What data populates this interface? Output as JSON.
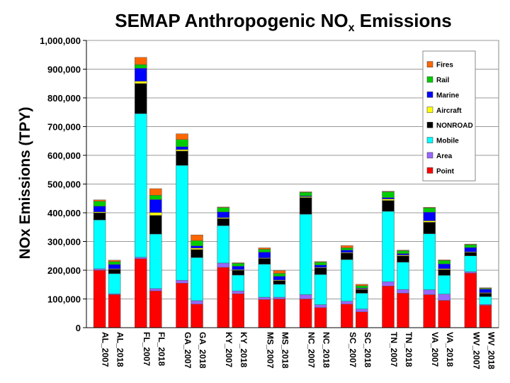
{
  "chart_data": {
    "type": "bar",
    "stacked": true,
    "title_main": "SEMAP Anthropogenic NO",
    "title_sub": "x",
    "title_end": " Emissions",
    "ylabel": "NOx Emissions (TPY)",
    "xlabel": "",
    "ylim": [
      0,
      1000000
    ],
    "yticks": [
      0,
      100000,
      200000,
      300000,
      400000,
      500000,
      600000,
      700000,
      800000,
      900000,
      1000000
    ],
    "ytick_labels": [
      "0",
      "100,000",
      "200,000",
      "300,000",
      "400,000",
      "500,000",
      "600,000",
      "700,000",
      "800,000",
      "900,000",
      "1,000,000"
    ],
    "grid": true,
    "legend_position": "top-right",
    "categories": [
      "AL_2007",
      "AL_2018",
      "FL_2007",
      "FL_2018",
      "GA_2007",
      "GA_2018",
      "KY_2007",
      "KY_2018",
      "MS_2007",
      "MS_2018",
      "NC_2007",
      "NC_2018",
      "SC_2007",
      "SC_2018",
      "TN_2007",
      "TN_2018",
      "VA_2007",
      "VA_2018",
      "WV_2007",
      "WV_2018"
    ],
    "series": [
      {
        "name": "Point",
        "color": "#ff0000",
        "values": [
          200000,
          115000,
          240000,
          128000,
          155000,
          82000,
          210000,
          118000,
          98000,
          100000,
          100000,
          70000,
          82000,
          55000,
          145000,
          120000,
          115000,
          95000,
          190000,
          78000
        ]
      },
      {
        "name": "Area",
        "color": "#9966ff",
        "values": [
          5000,
          3000,
          5000,
          8000,
          10000,
          12000,
          15000,
          10000,
          8000,
          6000,
          15000,
          10000,
          10000,
          10000,
          15000,
          13000,
          17000,
          22000,
          5000,
          3000
        ]
      },
      {
        "name": "Mobile",
        "color": "#00ffff",
        "values": [
          170000,
          70000,
          500000,
          190000,
          400000,
          150000,
          130000,
          55000,
          115000,
          45000,
          280000,
          105000,
          145000,
          55000,
          245000,
          95000,
          195000,
          65000,
          55000,
          27000
        ]
      },
      {
        "name": "NONROAD",
        "color": "#000000",
        "values": [
          25000,
          15000,
          105000,
          65000,
          50000,
          28000,
          25000,
          17000,
          20000,
          13000,
          58000,
          23000,
          23000,
          13000,
          38000,
          22000,
          40000,
          20000,
          12000,
          12000
        ]
      },
      {
        "name": "Aircraft",
        "color": "#ffff00",
        "values": [
          3000,
          2000,
          8000,
          10000,
          5000,
          5000,
          3000,
          2000,
          2000,
          2000,
          3000,
          2000,
          2000,
          2000,
          5000,
          3000,
          5000,
          3000,
          2000,
          2000
        ]
      },
      {
        "name": "Marine",
        "color": "#0000ff",
        "values": [
          20000,
          15000,
          45000,
          45000,
          10000,
          8000,
          20000,
          12000,
          20000,
          13000,
          3000,
          8000,
          8000,
          3000,
          5000,
          5000,
          30000,
          17000,
          15000,
          12000
        ]
      },
      {
        "name": "Rail",
        "color": "#00cc00",
        "values": [
          17000,
          10000,
          13000,
          15000,
          25000,
          18000,
          15000,
          10000,
          10000,
          10000,
          12000,
          10000,
          8000,
          8000,
          20000,
          10000,
          15000,
          12000,
          10000,
          3000
        ]
      },
      {
        "name": "Fires",
        "color": "#ff6600",
        "values": [
          5000,
          5000,
          25000,
          23000,
          20000,
          20000,
          2000,
          2000,
          5000,
          10000,
          2000,
          2000,
          8000,
          5000,
          2000,
          2000,
          2000,
          2000,
          2000,
          2000
        ]
      }
    ]
  }
}
